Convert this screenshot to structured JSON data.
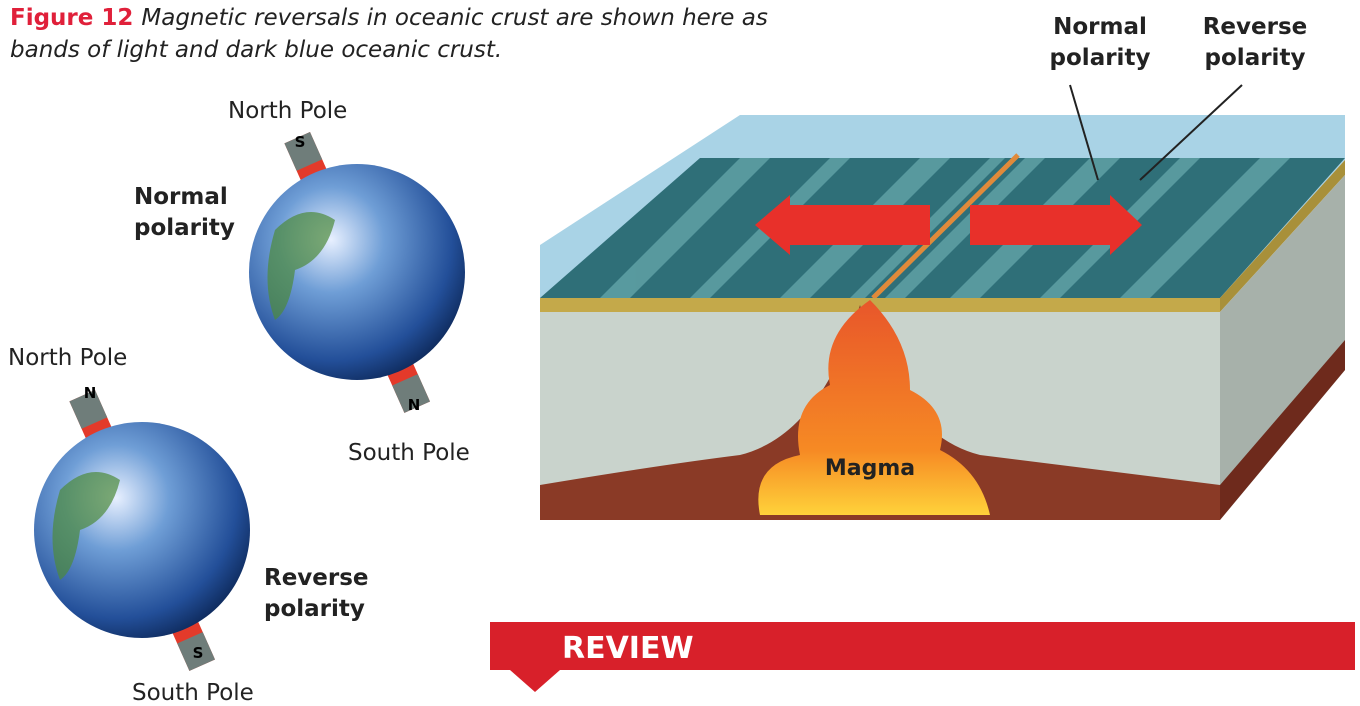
{
  "caption": {
    "label": "Figure 12",
    "text": "Magnetic reversals in oceanic crust are shown here as bands of light and dark blue oceanic crust."
  },
  "globes": [
    {
      "north_label": "North Pole",
      "north_magnet": "S",
      "south_magnet": "N",
      "south_label": "South Pole",
      "polarity": "Normal polarity"
    },
    {
      "north_label": "North Pole",
      "north_magnet": "N",
      "south_magnet": "S",
      "south_label": "South Pole",
      "polarity": "Reverse polarity"
    }
  ],
  "diagram": {
    "labels": [
      "Normal polarity",
      "Reverse polarity"
    ],
    "magma": "Magma"
  },
  "review": "REVIEW"
}
